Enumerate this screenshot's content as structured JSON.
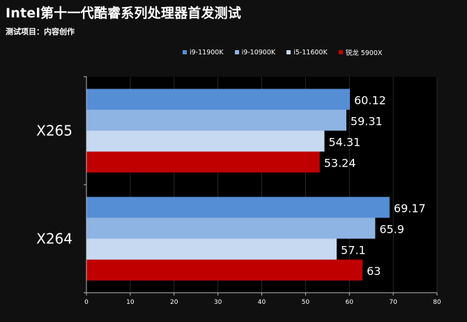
{
  "title": "Intel第十一代酷睿系列处理器首发测试",
  "subtitle": "测试项目：内容创作",
  "chart_data": {
    "type": "bar",
    "orientation": "horizontal",
    "categories": [
      "X265",
      "X264"
    ],
    "series": [
      {
        "name": "i9-11900K",
        "color": "#558ED5",
        "values": [
          60.12,
          69.17
        ],
        "labels": [
          "60.12",
          "69.17"
        ]
      },
      {
        "name": "i9-10900K",
        "color": "#8EB4E3",
        "values": [
          59.31,
          65.9
        ],
        "labels": [
          "59.31",
          "65.9"
        ]
      },
      {
        "name": "i5-11600K",
        "color": "#C6D9F1",
        "values": [
          54.31,
          57.1
        ],
        "labels": [
          "54.31",
          "57.1"
        ]
      },
      {
        "name": "锐龙 5900X",
        "color": "#C00000",
        "values": [
          53.24,
          63
        ],
        "labels": [
          "53.24",
          "63"
        ]
      }
    ],
    "xlim": [
      0,
      80
    ],
    "xticks": [
      "0",
      "10",
      "20",
      "30",
      "40",
      "50",
      "60",
      "70",
      "80"
    ],
    "grid": true,
    "legend": "top-right"
  }
}
